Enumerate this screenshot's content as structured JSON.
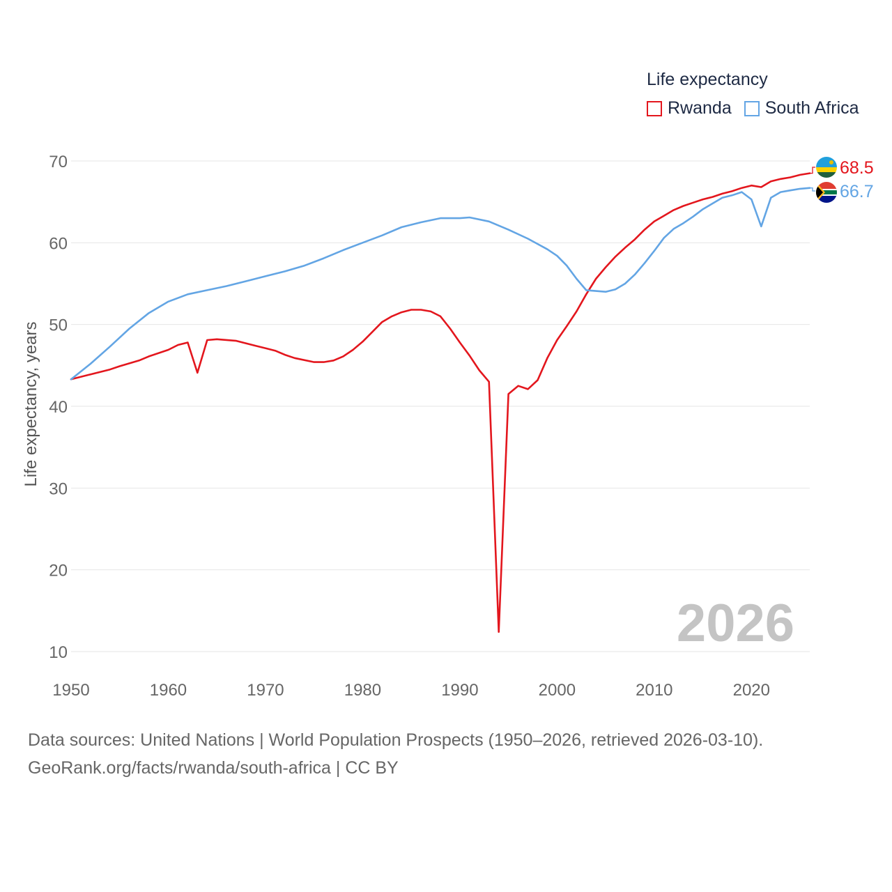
{
  "legend": {
    "title": "Life expectancy",
    "items": [
      {
        "label": "Rwanda",
        "color": "#e3161d"
      },
      {
        "label": "South Africa",
        "color": "#63a5e4"
      }
    ]
  },
  "footer": {
    "line1": "Data sources: United Nations | World Population Prospects (1950–2026, retrieved 2026-03-10).",
    "line2": "GeoRank.org/facts/rwanda/south-africa | CC BY"
  },
  "chart_data": {
    "type": "line",
    "title": "Life expectancy",
    "ylabel": "Life expectancy, years",
    "xlabel": "",
    "xlim": [
      1950,
      2026
    ],
    "ylim": [
      7,
      72
    ],
    "yticks": [
      10,
      20,
      30,
      40,
      50,
      60,
      70
    ],
    "xticks": [
      1950,
      1960,
      1970,
      1980,
      1990,
      2000,
      2010,
      2020
    ],
    "year_annotation": "2026",
    "grid": true,
    "legend_position": "top-right",
    "series": [
      {
        "name": "Rwanda",
        "color": "#e3161d",
        "end_label": "68.5",
        "x": [
          1950,
          1952,
          1954,
          1955,
          1957,
          1958,
          1960,
          1961,
          1962,
          1963,
          1964,
          1965,
          1967,
          1969,
          1971,
          1972,
          1973,
          1975,
          1976,
          1977,
          1978,
          1979,
          1980,
          1981,
          1982,
          1983,
          1984,
          1985,
          1986,
          1987,
          1988,
          1989,
          1990,
          1991,
          1992,
          1993,
          1994,
          1995,
          1996,
          1997,
          1998,
          1999,
          2000,
          2001,
          2002,
          2003,
          2004,
          2005,
          2006,
          2007,
          2008,
          2009,
          2010,
          2011,
          2012,
          2013,
          2014,
          2015,
          2016,
          2017,
          2018,
          2019,
          2020,
          2021,
          2022,
          2023,
          2024,
          2025,
          2026
        ],
        "y": [
          43.3,
          43.9,
          44.5,
          44.9,
          45.6,
          46.1,
          46.9,
          47.5,
          47.8,
          44.1,
          48.1,
          48.2,
          48.0,
          47.4,
          46.8,
          46.3,
          45.9,
          45.4,
          45.4,
          45.6,
          46.1,
          46.9,
          47.9,
          49.1,
          50.3,
          51.0,
          51.5,
          51.8,
          51.8,
          51.6,
          51.0,
          49.5,
          47.8,
          46.2,
          44.4,
          43.0,
          12.4,
          41.5,
          42.5,
          42.1,
          43.2,
          45.9,
          48.1,
          49.8,
          51.6,
          53.7,
          55.6,
          57.0,
          58.3,
          59.4,
          60.4,
          61.6,
          62.6,
          63.3,
          64.0,
          64.5,
          64.9,
          65.3,
          65.6,
          66.0,
          66.3,
          66.7,
          67.0,
          66.8,
          67.5,
          67.8,
          68.0,
          68.3,
          68.5
        ]
      },
      {
        "name": "South Africa",
        "color": "#63a5e4",
        "end_label": "66.7",
        "x": [
          1950,
          1952,
          1954,
          1956,
          1958,
          1960,
          1962,
          1964,
          1966,
          1968,
          1970,
          1972,
          1974,
          1976,
          1978,
          1980,
          1982,
          1984,
          1986,
          1988,
          1990,
          1991,
          1993,
          1995,
          1997,
          1999,
          2000,
          2001,
          2002,
          2003,
          2005,
          2006,
          2007,
          2008,
          2009,
          2010,
          2011,
          2012,
          2013,
          2014,
          2015,
          2016,
          2017,
          2018,
          2019,
          2020,
          2021,
          2022,
          2023,
          2024,
          2025,
          2026
        ],
        "y": [
          43.3,
          45.2,
          47.3,
          49.5,
          51.4,
          52.8,
          53.7,
          54.2,
          54.7,
          55.3,
          55.9,
          56.5,
          57.2,
          58.1,
          59.1,
          60.0,
          60.9,
          61.9,
          62.5,
          63.0,
          63.0,
          63.1,
          62.6,
          61.6,
          60.5,
          59.2,
          58.4,
          57.2,
          55.6,
          54.2,
          54.0,
          54.3,
          55.0,
          56.1,
          57.5,
          59.0,
          60.6,
          61.7,
          62.4,
          63.2,
          64.1,
          64.8,
          65.5,
          65.8,
          66.2,
          65.3,
          62.0,
          65.5,
          66.2,
          66.4,
          66.6,
          66.7
        ]
      }
    ]
  }
}
